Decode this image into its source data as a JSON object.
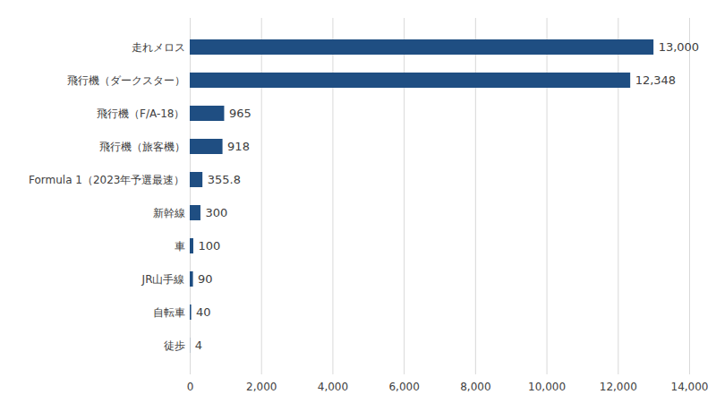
{
  "chart_data": {
    "type": "bar",
    "orientation": "horizontal",
    "categories": [
      "走れメロス",
      "飛行機（ダークスター）",
      "飛行機（F/A-18）",
      "飛行機（旅客機）",
      "Formula 1（2023年予選最速）",
      "新幹線",
      "車",
      "JR山手線",
      "自転車",
      "徒歩"
    ],
    "values": [
      13000,
      12348,
      965,
      918,
      355.8,
      300,
      100,
      90,
      40,
      4
    ],
    "value_labels": [
      "13,000",
      "12,348",
      "965",
      "918",
      "355.8",
      "300",
      "100",
      "90",
      "40",
      "4"
    ],
    "color": "#1f4e82",
    "xlim": [
      0,
      14000
    ],
    "xticks": [
      0,
      {
        "value": 2000,
        "label": "2,000"
      },
      {
        "value": 4000,
        "label": "4,000"
      },
      {
        "value": 6000,
        "label": "6,000"
      },
      {
        "value": 8000,
        "label": "8,000"
      },
      {
        "value": 10000,
        "label": "10,000"
      },
      {
        "value": 12000,
        "label": "12,000"
      },
      {
        "value": 14000,
        "label": "14,000"
      }
    ],
    "grid": true,
    "data_labels": true
  }
}
